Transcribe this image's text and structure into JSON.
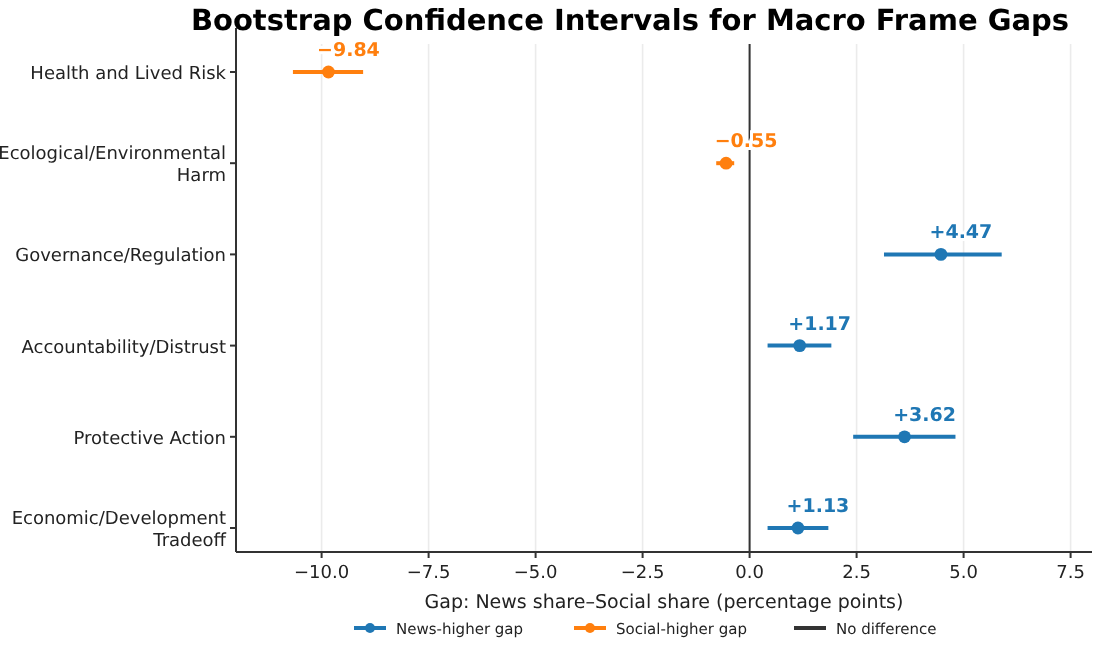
{
  "chart_data": {
    "type": "scatter",
    "orientation": "horizontal",
    "title": "Bootstrap Confidence Intervals for Macro Frame Gaps",
    "xlabel": "Gap: News share–Social share (percentage points)",
    "categories": [
      "Health and Lived Risk",
      "Ecological/Environmental Harm",
      "Governance/Regulation",
      "Accountability/Distrust",
      "Protective Action",
      "Economic/Development Tradeoff"
    ],
    "series": [
      {
        "name": "News-higher gap",
        "color": "#1f77b4",
        "values": [
          null,
          null,
          4.47,
          1.17,
          3.62,
          1.13
        ],
        "errors": [
          null,
          null,
          [
            3.14,
            5.89
          ],
          [
            0.42,
            1.91
          ],
          [
            2.42,
            4.81
          ],
          [
            0.42,
            1.84
          ]
        ],
        "value_labels": [
          null,
          null,
          "+4.47",
          "+1.17",
          "+3.62",
          "+1.13"
        ]
      },
      {
        "name": "Social-higher gap",
        "color": "#ff7f0e",
        "values": [
          -9.84,
          -0.55,
          null,
          null,
          null,
          null
        ],
        "errors": [
          [
            -10.67,
            -9.03
          ],
          [
            -0.78,
            -0.36
          ],
          null,
          null,
          null,
          null
        ],
        "value_labels": [
          "−9.84",
          "−0.55",
          null,
          null,
          null,
          null
        ]
      }
    ],
    "ref_lines": [
      {
        "axis": "x",
        "value": 0,
        "label": "No difference",
        "color": "#333333"
      }
    ],
    "xlim": [
      -12,
      8
    ],
    "xticks": [
      {
        "value": -10,
        "label": "−10.0"
      },
      {
        "value": -7.5,
        "label": "−7.5"
      },
      {
        "value": -5,
        "label": "−5.0"
      },
      {
        "value": -2.5,
        "label": "−2.5"
      },
      {
        "value": 0,
        "label": "0.0"
      },
      {
        "value": 2.5,
        "label": "2.5"
      },
      {
        "value": 5,
        "label": "5.0"
      },
      {
        "value": 7.5,
        "label": "7.5"
      }
    ],
    "grid": "x",
    "legend": "bottom",
    "marker": "circle"
  }
}
